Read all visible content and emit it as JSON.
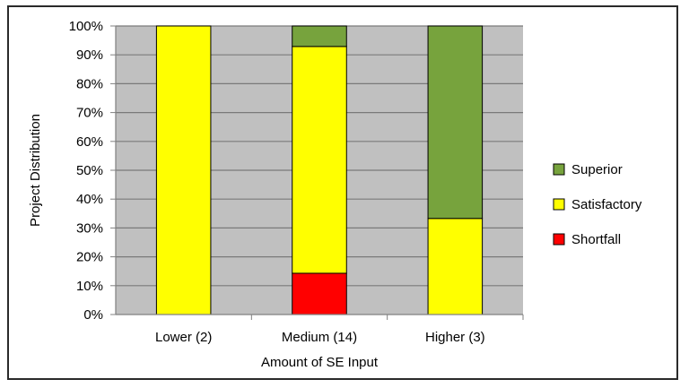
{
  "chart_data": {
    "type": "bar",
    "stacked": true,
    "categories": [
      "Lower (2)",
      "Medium (14)",
      "Higher (3)"
    ],
    "series": [
      {
        "name": "Shortfall",
        "color": "#ff0000",
        "values": [
          0,
          14.3,
          0
        ]
      },
      {
        "name": "Satisfactory",
        "color": "#ffff00",
        "values": [
          100,
          78.6,
          33.3
        ]
      },
      {
        "name": "Superior",
        "color": "#77a33d",
        "values": [
          0,
          7.1,
          66.7
        ]
      }
    ],
    "legend_order": [
      "Superior",
      "Satisfactory",
      "Shortfall"
    ],
    "title": "",
    "xlabel": "Amount of SE Input",
    "ylabel": "Project Distribution",
    "ylim": [
      0,
      100
    ],
    "yticks": [
      "0%",
      "10%",
      "20%",
      "30%",
      "40%",
      "50%",
      "60%",
      "70%",
      "80%",
      "90%",
      "100%"
    ],
    "plot_background": "#c0c0c0",
    "grid": true,
    "legend_position": "right"
  }
}
